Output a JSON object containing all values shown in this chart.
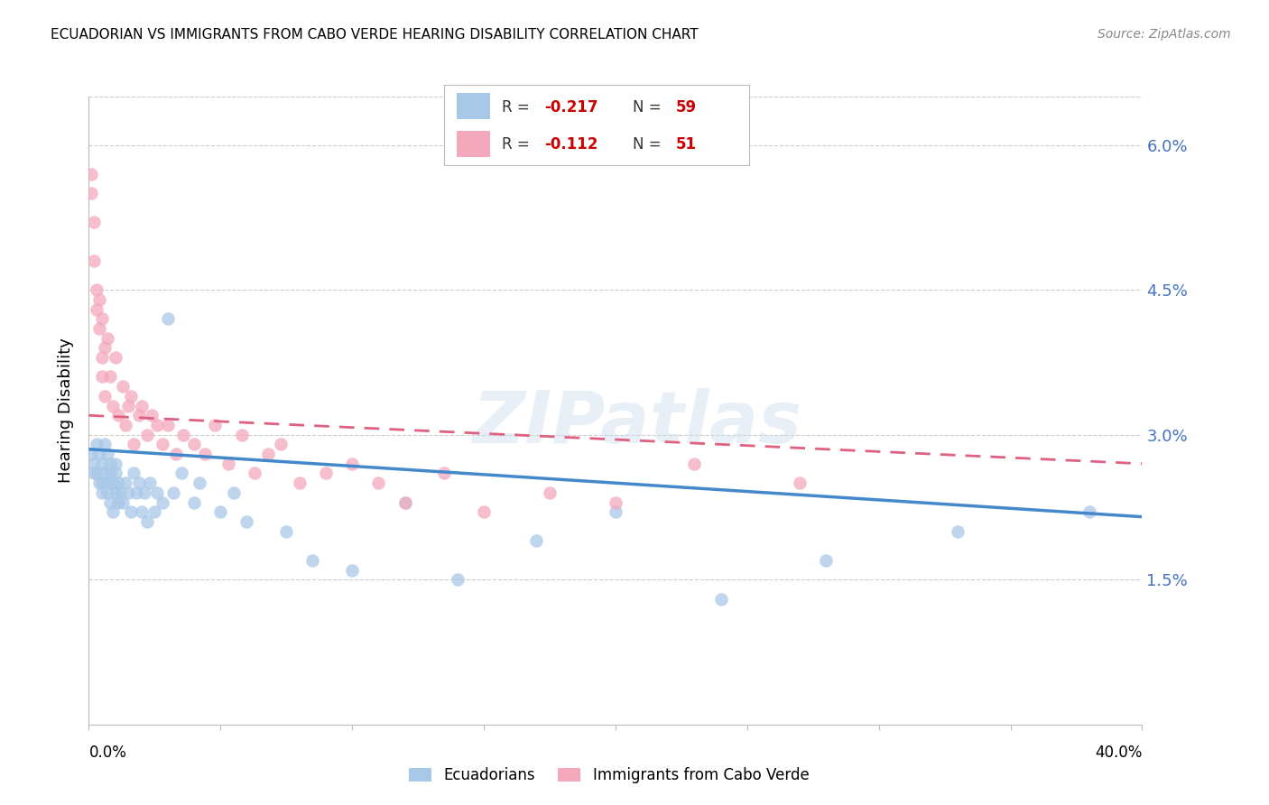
{
  "title": "ECUADORIAN VS IMMIGRANTS FROM CABO VERDE HEARING DISABILITY CORRELATION CHART",
  "source": "Source: ZipAtlas.com",
  "ylabel": "Hearing Disability",
  "yticks": [
    0.0,
    0.015,
    0.03,
    0.045,
    0.06
  ],
  "ytick_labels": [
    "",
    "1.5%",
    "3.0%",
    "4.5%",
    "6.0%"
  ],
  "xlim": [
    0.0,
    0.4
  ],
  "ylim": [
    0.0,
    0.065
  ],
  "watermark": "ZIPatlas",
  "blue_color": "#a8c8e8",
  "pink_color": "#f4a8bc",
  "blue_line_color": "#4488cc",
  "pink_line_color": "#e06080",
  "grid_color": "#cccccc",
  "axis_color": "#bbbbbb",
  "ecuadorians_x": [
    0.001,
    0.002,
    0.002,
    0.003,
    0.003,
    0.004,
    0.004,
    0.005,
    0.005,
    0.005,
    0.006,
    0.006,
    0.007,
    0.007,
    0.007,
    0.008,
    0.008,
    0.008,
    0.009,
    0.009,
    0.01,
    0.01,
    0.01,
    0.011,
    0.011,
    0.012,
    0.013,
    0.014,
    0.015,
    0.016,
    0.017,
    0.018,
    0.019,
    0.02,
    0.021,
    0.022,
    0.023,
    0.025,
    0.026,
    0.028,
    0.03,
    0.032,
    0.035,
    0.04,
    0.042,
    0.05,
    0.055,
    0.06,
    0.075,
    0.085,
    0.1,
    0.12,
    0.14,
    0.17,
    0.2,
    0.24,
    0.28,
    0.33,
    0.38
  ],
  "ecuadorians_y": [
    0.028,
    0.027,
    0.026,
    0.029,
    0.026,
    0.025,
    0.028,
    0.025,
    0.027,
    0.024,
    0.026,
    0.029,
    0.025,
    0.028,
    0.024,
    0.026,
    0.023,
    0.027,
    0.025,
    0.022,
    0.027,
    0.024,
    0.026,
    0.023,
    0.025,
    0.024,
    0.023,
    0.025,
    0.024,
    0.022,
    0.026,
    0.024,
    0.025,
    0.022,
    0.024,
    0.021,
    0.025,
    0.022,
    0.024,
    0.023,
    0.042,
    0.024,
    0.026,
    0.023,
    0.025,
    0.022,
    0.024,
    0.021,
    0.02,
    0.017,
    0.016,
    0.023,
    0.015,
    0.019,
    0.022,
    0.013,
    0.017,
    0.02,
    0.022
  ],
  "caboverde_x": [
    0.001,
    0.001,
    0.002,
    0.002,
    0.003,
    0.003,
    0.004,
    0.004,
    0.005,
    0.005,
    0.005,
    0.006,
    0.006,
    0.007,
    0.008,
    0.009,
    0.01,
    0.011,
    0.013,
    0.014,
    0.015,
    0.016,
    0.017,
    0.019,
    0.02,
    0.022,
    0.024,
    0.026,
    0.028,
    0.03,
    0.033,
    0.036,
    0.04,
    0.044,
    0.048,
    0.053,
    0.058,
    0.063,
    0.068,
    0.073,
    0.08,
    0.09,
    0.1,
    0.11,
    0.12,
    0.135,
    0.15,
    0.175,
    0.2,
    0.23,
    0.27
  ],
  "caboverde_y": [
    0.057,
    0.055,
    0.052,
    0.048,
    0.045,
    0.043,
    0.041,
    0.044,
    0.038,
    0.042,
    0.036,
    0.039,
    0.034,
    0.04,
    0.036,
    0.033,
    0.038,
    0.032,
    0.035,
    0.031,
    0.033,
    0.034,
    0.029,
    0.032,
    0.033,
    0.03,
    0.032,
    0.031,
    0.029,
    0.031,
    0.028,
    0.03,
    0.029,
    0.028,
    0.031,
    0.027,
    0.03,
    0.026,
    0.028,
    0.029,
    0.025,
    0.026,
    0.027,
    0.025,
    0.023,
    0.026,
    0.022,
    0.024,
    0.023,
    0.027,
    0.025
  ],
  "blue_line_start_y": 0.0285,
  "blue_line_end_y": 0.0215,
  "pink_line_start_y": 0.032,
  "pink_line_end_y": 0.027
}
